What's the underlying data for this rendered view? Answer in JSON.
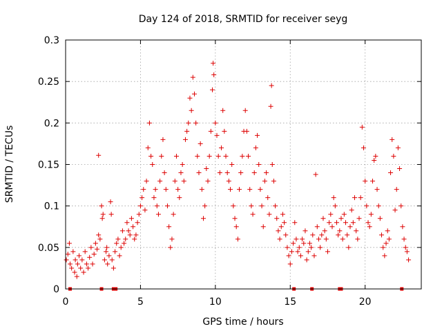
{
  "chart_data": {
    "type": "scatter",
    "title": "Day 124 of 2018, SRMTID for receiver seyg",
    "xlabel": "GPS time / hours",
    "ylabel": "SRMTID / TECUs",
    "xlim": [
      0,
      23.75
    ],
    "ylim": [
      0,
      0.3
    ],
    "x_ticks": [
      0,
      5,
      10,
      15,
      20
    ],
    "x_tick_labels": [
      "0",
      "5",
      "10",
      "15",
      "20"
    ],
    "y_ticks": [
      0,
      0.05,
      0.1,
      0.15,
      0.2,
      0.25,
      0.3
    ],
    "y_tick_labels": [
      "0",
      "0.05",
      "0.1",
      "0.15",
      "0.2",
      "0.25",
      "0.3"
    ],
    "grid": true,
    "marker": "+",
    "color": "#dd0000",
    "series": [
      {
        "name": "SRMTID",
        "points": [
          [
            0.05,
            0.035
          ],
          [
            0.15,
            0.042
          ],
          [
            0.25,
            0.055
          ],
          [
            0.3,
            0.03
          ],
          [
            0.4,
            0.025
          ],
          [
            0.5,
            0.045
          ],
          [
            0.6,
            0.02
          ],
          [
            0.65,
            0.035
          ],
          [
            0.75,
            0.015
          ],
          [
            0.8,
            0.03
          ],
          [
            0.9,
            0.04
          ],
          [
            1.0,
            0.025
          ],
          [
            1.1,
            0.035
          ],
          [
            1.2,
            0.02
          ],
          [
            1.3,
            0.045
          ],
          [
            1.4,
            0.03
          ],
          [
            1.5,
            0.025
          ],
          [
            1.6,
            0.038
          ],
          [
            1.7,
            0.05
          ],
          [
            1.8,
            0.03
          ],
          [
            1.9,
            0.042
          ],
          [
            2.0,
            0.055
          ],
          [
            2.1,
            0.048
          ],
          [
            2.2,
            0.065
          ],
          [
            2.3,
            0.06
          ],
          [
            2.4,
            0.1
          ],
          [
            2.45,
            0.085
          ],
          [
            2.2,
            0.161
          ],
          [
            2.5,
            0.09
          ],
          [
            2.6,
            0.035
          ],
          [
            2.7,
            0.045
          ],
          [
            2.75,
            0.05
          ],
          [
            2.8,
            0.03
          ],
          [
            2.9,
            0.04
          ],
          [
            3.0,
            0.105
          ],
          [
            3.05,
            0.09
          ],
          [
            3.1,
            0.035
          ],
          [
            3.2,
            0.025
          ],
          [
            3.3,
            0.045
          ],
          [
            3.4,
            0.055
          ],
          [
            3.5,
            0.06
          ],
          [
            3.6,
            0.04
          ],
          [
            3.7,
            0.05
          ],
          [
            3.8,
            0.07
          ],
          [
            3.9,
            0.055
          ],
          [
            4.0,
            0.06
          ],
          [
            4.1,
            0.08
          ],
          [
            4.2,
            0.07
          ],
          [
            4.3,
            0.065
          ],
          [
            4.4,
            0.085
          ],
          [
            4.5,
            0.075
          ],
          [
            4.6,
            0.06
          ],
          [
            4.7,
            0.065
          ],
          [
            4.8,
            0.08
          ],
          [
            4.9,
            0.09
          ],
          [
            5.0,
            0.1
          ],
          [
            5.1,
            0.11
          ],
          [
            5.2,
            0.12
          ],
          [
            5.3,
            0.095
          ],
          [
            5.4,
            0.13
          ],
          [
            5.5,
            0.17
          ],
          [
            5.6,
            0.2
          ],
          [
            5.7,
            0.16
          ],
          [
            5.8,
            0.15
          ],
          [
            5.9,
            0.11
          ],
          [
            6.0,
            0.12
          ],
          [
            6.1,
            0.1
          ],
          [
            6.2,
            0.09
          ],
          [
            6.3,
            0.13
          ],
          [
            6.4,
            0.16
          ],
          [
            6.5,
            0.18
          ],
          [
            6.6,
            0.14
          ],
          [
            6.7,
            0.12
          ],
          [
            6.8,
            0.1
          ],
          [
            6.9,
            0.075
          ],
          [
            7.0,
            0.05
          ],
          [
            7.1,
            0.06
          ],
          [
            7.2,
            0.09
          ],
          [
            7.3,
            0.13
          ],
          [
            7.4,
            0.16
          ],
          [
            7.5,
            0.12
          ],
          [
            7.6,
            0.11
          ],
          [
            7.7,
            0.14
          ],
          [
            7.8,
            0.15
          ],
          [
            7.9,
            0.13
          ],
          [
            8.0,
            0.18
          ],
          [
            8.1,
            0.19
          ],
          [
            8.2,
            0.2
          ],
          [
            8.3,
            0.23
          ],
          [
            8.4,
            0.215
          ],
          [
            8.5,
            0.255
          ],
          [
            8.6,
            0.235
          ],
          [
            8.7,
            0.2
          ],
          [
            8.8,
            0.16
          ],
          [
            8.9,
            0.14
          ],
          [
            9.0,
            0.175
          ],
          [
            9.1,
            0.12
          ],
          [
            9.2,
            0.085
          ],
          [
            9.3,
            0.1
          ],
          [
            9.4,
            0.145
          ],
          [
            9.5,
            0.13
          ],
          [
            9.6,
            0.16
          ],
          [
            9.7,
            0.19
          ],
          [
            9.8,
            0.24
          ],
          [
            9.85,
            0.272
          ],
          [
            9.9,
            0.258
          ],
          [
            10.0,
            0.2
          ],
          [
            10.1,
            0.185
          ],
          [
            10.2,
            0.16
          ],
          [
            10.3,
            0.14
          ],
          [
            10.4,
            0.17
          ],
          [
            10.5,
            0.215
          ],
          [
            10.6,
            0.19
          ],
          [
            10.7,
            0.16
          ],
          [
            10.8,
            0.14
          ],
          [
            10.9,
            0.13
          ],
          [
            11.0,
            0.12
          ],
          [
            11.1,
            0.15
          ],
          [
            11.2,
            0.1
          ],
          [
            11.3,
            0.085
          ],
          [
            11.4,
            0.075
          ],
          [
            11.5,
            0.06
          ],
          [
            11.6,
            0.12
          ],
          [
            11.7,
            0.14
          ],
          [
            11.8,
            0.16
          ],
          [
            11.9,
            0.19
          ],
          [
            12.0,
            0.215
          ],
          [
            12.1,
            0.19
          ],
          [
            12.2,
            0.16
          ],
          [
            12.3,
            0.12
          ],
          [
            12.4,
            0.1
          ],
          [
            12.5,
            0.09
          ],
          [
            12.6,
            0.14
          ],
          [
            12.7,
            0.17
          ],
          [
            12.8,
            0.185
          ],
          [
            12.9,
            0.15
          ],
          [
            13.0,
            0.12
          ],
          [
            13.1,
            0.1
          ],
          [
            13.2,
            0.075
          ],
          [
            13.3,
            0.13
          ],
          [
            13.4,
            0.14
          ],
          [
            13.5,
            0.11
          ],
          [
            13.6,
            0.09
          ],
          [
            13.7,
            0.22
          ],
          [
            13.75,
            0.245
          ],
          [
            13.8,
            0.15
          ],
          [
            13.9,
            0.13
          ],
          [
            14.0,
            0.1
          ],
          [
            14.1,
            0.085
          ],
          [
            14.2,
            0.07
          ],
          [
            14.3,
            0.06
          ],
          [
            14.4,
            0.075
          ],
          [
            14.5,
            0.09
          ],
          [
            14.6,
            0.08
          ],
          [
            14.7,
            0.065
          ],
          [
            14.8,
            0.05
          ],
          [
            14.9,
            0.04
          ],
          [
            15.0,
            0.03
          ],
          [
            15.1,
            0.045
          ],
          [
            15.2,
            0.055
          ],
          [
            15.3,
            0.08
          ],
          [
            15.4,
            0.06
          ],
          [
            15.5,
            0.045
          ],
          [
            15.6,
            0.05
          ],
          [
            15.7,
            0.04
          ],
          [
            15.8,
            0.06
          ],
          [
            15.9,
            0.055
          ],
          [
            16.0,
            0.07
          ],
          [
            16.1,
            0.035
          ],
          [
            16.2,
            0.045
          ],
          [
            16.3,
            0.055
          ],
          [
            16.4,
            0.05
          ],
          [
            16.5,
            0.065
          ],
          [
            16.6,
            0.04
          ],
          [
            16.7,
            0.138
          ],
          [
            16.8,
            0.075
          ],
          [
            16.9,
            0.06
          ],
          [
            17.0,
            0.05
          ],
          [
            17.1,
            0.065
          ],
          [
            17.2,
            0.085
          ],
          [
            17.3,
            0.07
          ],
          [
            17.4,
            0.06
          ],
          [
            17.5,
            0.045
          ],
          [
            17.6,
            0.08
          ],
          [
            17.7,
            0.09
          ],
          [
            17.8,
            0.075
          ],
          [
            17.9,
            0.11
          ],
          [
            18.0,
            0.1
          ],
          [
            18.1,
            0.08
          ],
          [
            18.2,
            0.065
          ],
          [
            18.3,
            0.07
          ],
          [
            18.4,
            0.085
          ],
          [
            18.5,
            0.06
          ],
          [
            18.6,
            0.09
          ],
          [
            18.7,
            0.08
          ],
          [
            18.8,
            0.065
          ],
          [
            18.9,
            0.05
          ],
          [
            19.0,
            0.075
          ],
          [
            19.1,
            0.095
          ],
          [
            19.2,
            0.08
          ],
          [
            19.3,
            0.11
          ],
          [
            19.4,
            0.07
          ],
          [
            19.5,
            0.06
          ],
          [
            19.6,
            0.085
          ],
          [
            19.7,
            0.11
          ],
          [
            19.8,
            0.195
          ],
          [
            19.9,
            0.17
          ],
          [
            20.0,
            0.13
          ],
          [
            20.1,
            0.1
          ],
          [
            20.2,
            0.08
          ],
          [
            20.3,
            0.075
          ],
          [
            20.4,
            0.09
          ],
          [
            20.5,
            0.13
          ],
          [
            20.6,
            0.155
          ],
          [
            20.7,
            0.16
          ],
          [
            20.8,
            0.12
          ],
          [
            20.9,
            0.1
          ],
          [
            21.0,
            0.085
          ],
          [
            21.1,
            0.065
          ],
          [
            21.2,
            0.05
          ],
          [
            21.3,
            0.04
          ],
          [
            21.4,
            0.055
          ],
          [
            21.5,
            0.07
          ],
          [
            21.6,
            0.06
          ],
          [
            21.7,
            0.14
          ],
          [
            21.8,
            0.18
          ],
          [
            21.9,
            0.16
          ],
          [
            22.0,
            0.095
          ],
          [
            22.1,
            0.12
          ],
          [
            22.2,
            0.17
          ],
          [
            22.3,
            0.145
          ],
          [
            22.4,
            0.1
          ],
          [
            22.5,
            0.075
          ],
          [
            22.6,
            0.06
          ],
          [
            22.7,
            0.05
          ],
          [
            22.8,
            0.045
          ],
          [
            22.9,
            0.035
          ]
        ]
      }
    ],
    "gap_markers_x": [
      0.3,
      2.4,
      3.2,
      3.35,
      15.25,
      16.45,
      18.3,
      18.4,
      22.45
    ]
  }
}
